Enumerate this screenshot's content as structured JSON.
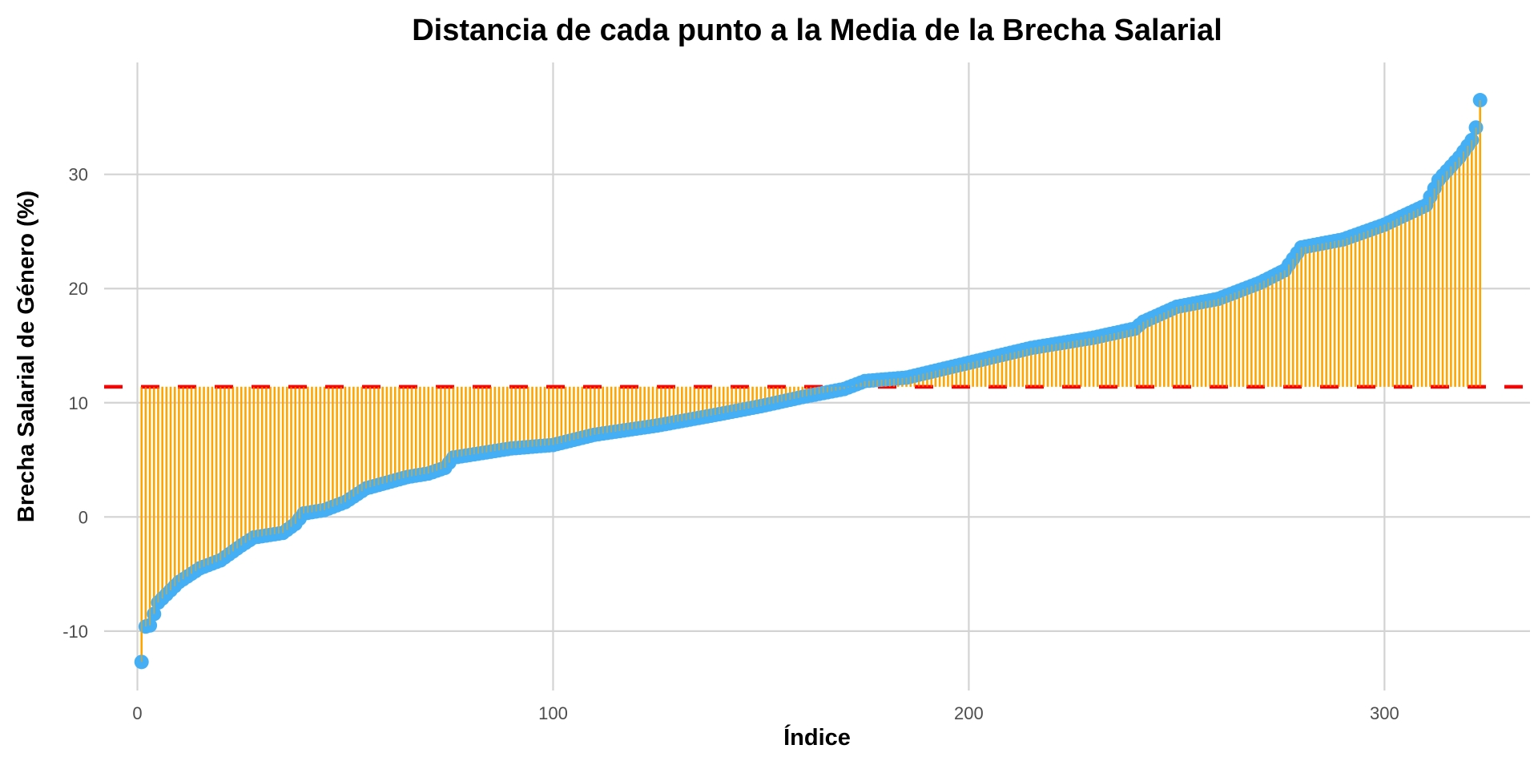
{
  "chart_data": {
    "type": "lollipop",
    "title": "Distancia de cada punto a la Media de la Brecha Salarial",
    "xlabel": "Índice",
    "ylabel": "Brecha Salarial de Género (%)",
    "xlim": [
      -8,
      335
    ],
    "ylim": [
      -15.2,
      39.8
    ],
    "x_ticks": [
      0,
      100,
      200,
      300
    ],
    "x_tick_labels": [
      "0",
      "100",
      "200",
      "300"
    ],
    "y_ticks": [
      -10,
      0,
      10,
      20,
      30
    ],
    "y_tick_labels": [
      "-10",
      "0",
      "10",
      "20",
      "30"
    ],
    "grid": true,
    "n_points": 323,
    "mean": 11.4,
    "sorted_values_knots": [
      [
        1,
        -12.7
      ],
      [
        2,
        -9.6
      ],
      [
        3,
        -9.5
      ],
      [
        5,
        -7.5
      ],
      [
        10,
        -5.7
      ],
      [
        15,
        -4.5
      ],
      [
        20,
        -3.8
      ],
      [
        25,
        -2.5
      ],
      [
        28,
        -1.8
      ],
      [
        35,
        -1.4
      ],
      [
        38,
        -0.6
      ],
      [
        40,
        0.3
      ],
      [
        45,
        0.6
      ],
      [
        50,
        1.3
      ],
      [
        55,
        2.5
      ],
      [
        60,
        3.0
      ],
      [
        65,
        3.5
      ],
      [
        70,
        3.8
      ],
      [
        74,
        4.3
      ],
      [
        76,
        5.2
      ],
      [
        90,
        6.0
      ],
      [
        100,
        6.3
      ],
      [
        110,
        7.2
      ],
      [
        125,
        8.0
      ],
      [
        140,
        9.0
      ],
      [
        150,
        9.7
      ],
      [
        160,
        10.5
      ],
      [
        170,
        11.2
      ],
      [
        175,
        11.9
      ],
      [
        185,
        12.2
      ],
      [
        200,
        13.5
      ],
      [
        215,
        14.8
      ],
      [
        230,
        15.7
      ],
      [
        240,
        16.5
      ],
      [
        242,
        17.1
      ],
      [
        250,
        18.4
      ],
      [
        260,
        19.1
      ],
      [
        270,
        20.5
      ],
      [
        276,
        21.6
      ],
      [
        280,
        23.6
      ],
      [
        290,
        24.3
      ],
      [
        300,
        25.6
      ],
      [
        310,
        27.3
      ],
      [
        313,
        29.5
      ],
      [
        318,
        31.5
      ],
      [
        321,
        33.0
      ],
      [
        322,
        34.1
      ],
      [
        323,
        36.5
      ]
    ],
    "colors": {
      "point": "#45AFF5",
      "stem": "#FFA500",
      "mean_line": "#FF0000"
    }
  }
}
